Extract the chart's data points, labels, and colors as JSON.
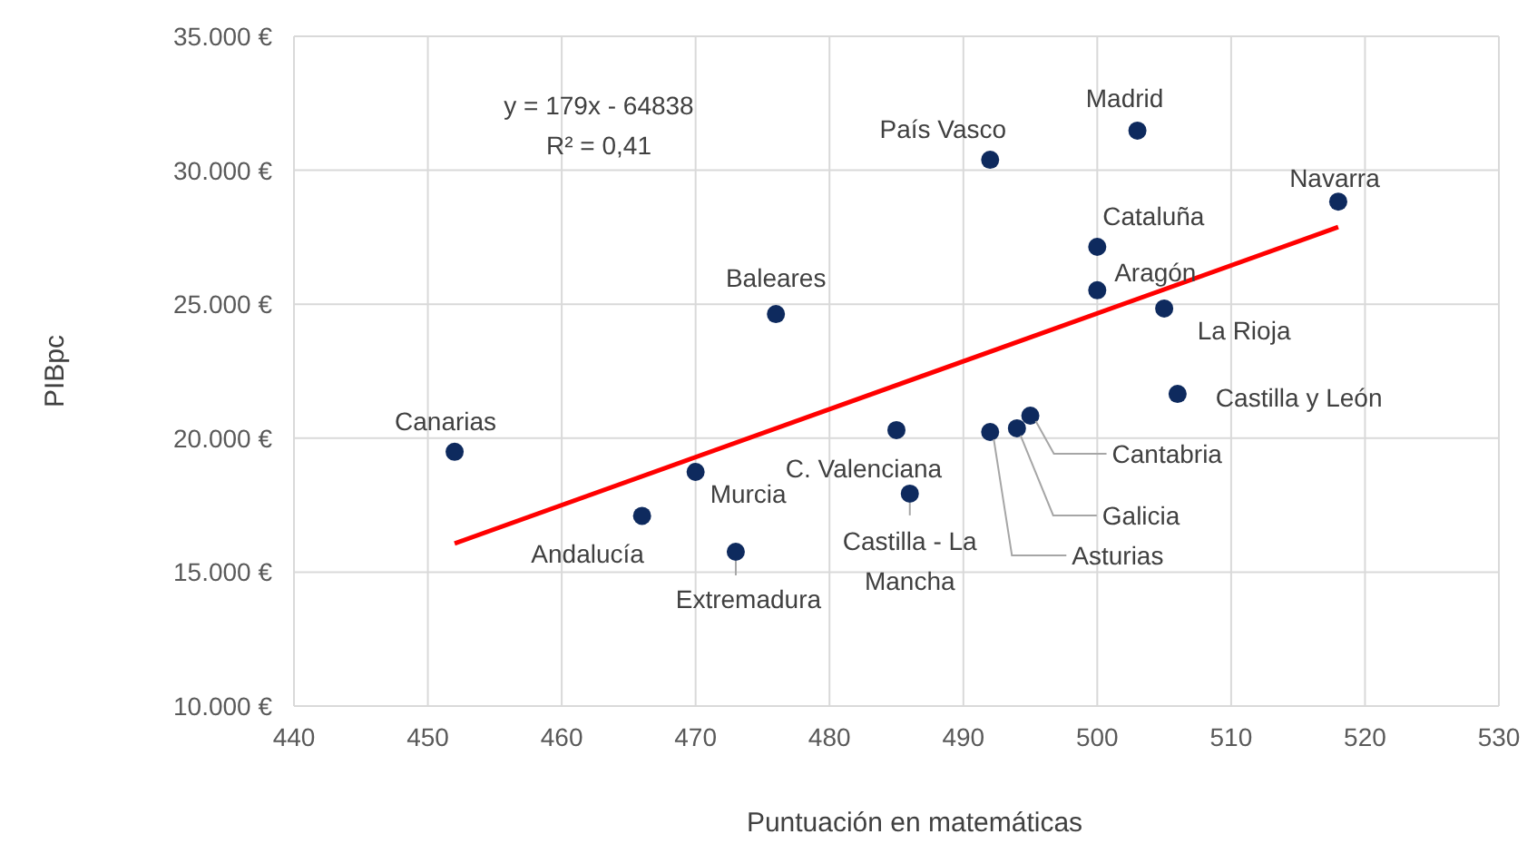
{
  "chart_data": {
    "type": "scatter",
    "xlabel": "Puntuación en matemáticas",
    "ylabel": "PIBpc",
    "xlim": [
      440,
      530
    ],
    "xticks": [
      440,
      450,
      460,
      470,
      480,
      490,
      500,
      510,
      520,
      530
    ],
    "ylim": [
      10000,
      35000
    ],
    "yticks": [
      {
        "value": 10000,
        "label": "10.000 €"
      },
      {
        "value": 15000,
        "label": "15.000 €"
      },
      {
        "value": 20000,
        "label": "20.000 €"
      },
      {
        "value": 25000,
        "label": "25.000 €"
      },
      {
        "value": 30000,
        "label": "30.000 €"
      },
      {
        "value": 35000,
        "label": "35.000 €"
      }
    ],
    "grid": true,
    "series": [
      {
        "marker": "circle",
        "color": "#0e2a5e",
        "x": [
          452,
          466,
          470,
          473,
          476,
          485,
          486,
          492,
          503,
          500,
          500,
          505,
          506,
          518,
          495,
          494,
          492
        ],
        "values": [
          19490,
          17100,
          18740,
          15760,
          24630,
          20300,
          17930,
          30390,
          31480,
          27140,
          25520,
          24840,
          21650,
          28830,
          20840,
          20370,
          20230
        ]
      },
      {
        "type": "line",
        "color": "#ff0000",
        "x": [
          452,
          518
        ],
        "values": [
          16070,
          27880
        ],
        "marker": "none"
      }
    ],
    "annotations": [
      {
        "text": "Canarias",
        "x": 452,
        "y": 19490
      },
      {
        "text": "Andalucía",
        "x": 466,
        "y": 17100
      },
      {
        "text": "Murcia",
        "x": 470,
        "y": 18740
      },
      {
        "text": "Extremadura",
        "x": 473,
        "y": 15760
      },
      {
        "text": "Baleares",
        "x": 476,
        "y": 24630
      },
      {
        "text": "C. Valenciana",
        "x": 485,
        "y": 20300
      },
      {
        "text": "Castilla - La Mancha",
        "x": 486,
        "y": 17930
      },
      {
        "text": "País Vasco",
        "x": 492,
        "y": 30390
      },
      {
        "text": "Madrid",
        "x": 503,
        "y": 31480
      },
      {
        "text": "Cataluña",
        "x": 500,
        "y": 27140
      },
      {
        "text": "Aragón",
        "x": 500,
        "y": 25520
      },
      {
        "text": "La Rioja",
        "x": 505,
        "y": 24840
      },
      {
        "text": "Castilla y León",
        "x": 506,
        "y": 21650
      },
      {
        "text": "Navarra",
        "x": 518,
        "y": 28830
      },
      {
        "text": "Cantabria",
        "x": 495,
        "y": 20840
      },
      {
        "text": "Galicia",
        "x": 494,
        "y": 20370
      },
      {
        "text": "Asturias",
        "x": 492,
        "y": 20230
      },
      "y = 179x - 64838",
      "R² = 0,41"
    ]
  }
}
